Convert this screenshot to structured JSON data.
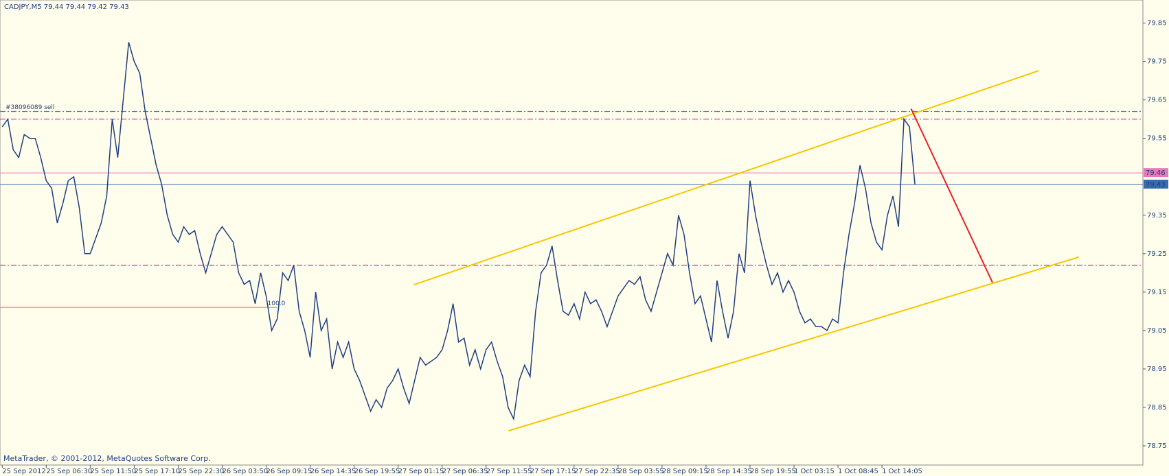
{
  "chart_data": {
    "type": "line",
    "title": "CADJPY,M5  79.44 79.44 79.42 79.43",
    "footer": "MetaTrader, © 2001-2012, MetaQuotes Software Corp.",
    "categories": [
      "25 Sep 2012",
      null,
      null,
      null,
      null,
      null,
      null,
      null,
      "25 Sep 06:30",
      null,
      null,
      null,
      null,
      null,
      null,
      null,
      "25 Sep 11:50",
      null,
      null,
      null,
      null,
      null,
      null,
      null,
      "25 Sep 17:10",
      null,
      null,
      null,
      null,
      null,
      null,
      null,
      "25 Sep 22:30",
      null,
      null,
      null,
      null,
      null,
      null,
      null,
      "26 Sep 03:50",
      null,
      null,
      null,
      null,
      null,
      null,
      null,
      "26 Sep 09:15",
      null,
      null,
      null,
      null,
      null,
      null,
      null,
      "26 Sep 14:35",
      null,
      null,
      null,
      null,
      null,
      null,
      null,
      "26 Sep 19:55",
      null,
      null,
      null,
      null,
      null,
      null,
      null,
      "27 Sep 01:15",
      null,
      null,
      null,
      null,
      null,
      null,
      null,
      "27 Sep 06:35",
      null,
      null,
      null,
      null,
      null,
      null,
      null,
      "27 Sep 11:55",
      null,
      null,
      null,
      null,
      null,
      null,
      null,
      "27 Sep 17:15",
      null,
      null,
      null,
      null,
      null,
      null,
      null,
      "27 Sep 22:35",
      null,
      null,
      null,
      null,
      null,
      null,
      null,
      "28 Sep 03:55",
      null,
      null,
      null,
      null,
      null,
      null,
      null,
      "28 Sep 09:15",
      null,
      null,
      null,
      null,
      null,
      null,
      null,
      "28 Sep 14:35",
      null,
      null,
      null,
      null,
      null,
      null,
      null,
      "28 Sep 19:55",
      null,
      null,
      null,
      null,
      null,
      null,
      null,
      "1 Oct 03:15",
      null,
      null,
      null,
      null,
      null,
      null,
      null,
      "1 Oct 08:45",
      null,
      null,
      null,
      null,
      null,
      null,
      null,
      "1 Oct 14:05",
      null,
      null,
      null,
      null,
      null,
      null
    ],
    "series": [
      {
        "color": "#1f3f7f",
        "values": [
          79.58,
          79.6,
          79.52,
          79.5,
          79.56,
          79.55,
          79.55,
          79.5,
          79.44,
          79.42,
          79.33,
          79.38,
          79.44,
          79.45,
          79.37,
          79.25,
          79.25,
          79.29,
          79.33,
          79.4,
          79.6,
          79.5,
          79.65,
          79.8,
          79.75,
          79.72,
          79.62,
          79.55,
          79.48,
          79.43,
          79.35,
          79.3,
          79.28,
          79.32,
          79.3,
          79.31,
          79.25,
          79.2,
          79.25,
          79.3,
          79.32,
          79.3,
          79.28,
          79.2,
          79.17,
          79.18,
          79.12,
          79.2,
          79.14,
          79.05,
          79.08,
          79.2,
          79.18,
          79.22,
          79.1,
          79.05,
          78.98,
          79.15,
          79.05,
          79.08,
          78.95,
          79.02,
          78.98,
          79.02,
          78.95,
          78.92,
          78.88,
          78.84,
          78.87,
          78.85,
          78.9,
          78.92,
          78.95,
          78.9,
          78.86,
          78.92,
          78.98,
          78.96,
          78.97,
          78.98,
          79.0,
          79.05,
          79.12,
          79.02,
          79.03,
          78.96,
          79.0,
          78.95,
          79.0,
          79.02,
          78.97,
          78.93,
          78.85,
          78.82,
          78.92,
          78.96,
          78.93,
          79.1,
          79.2,
          79.22,
          79.27,
          79.18,
          79.1,
          79.09,
          79.12,
          79.08,
          79.15,
          79.12,
          79.13,
          79.1,
          79.06,
          79.1,
          79.14,
          79.16,
          79.18,
          79.17,
          79.19,
          79.13,
          79.1,
          79.15,
          79.2,
          79.25,
          79.22,
          79.35,
          79.3,
          79.2,
          79.12,
          79.14,
          79.08,
          79.02,
          79.18,
          79.1,
          79.03,
          79.1,
          79.25,
          79.2,
          79.44,
          79.35,
          79.28,
          79.22,
          79.17,
          79.2,
          79.15,
          79.18,
          79.15,
          79.1,
          79.07,
          79.08,
          79.06,
          79.06,
          79.05,
          79.08,
          79.07,
          79.2,
          79.3,
          79.38,
          79.48,
          79.42,
          79.33,
          79.28,
          79.26,
          79.35,
          79.4,
          79.32,
          79.6,
          79.58,
          79.43
        ]
      }
    ],
    "ylim": [
      78.7,
      79.91
    ],
    "yticks": [
      78.75,
      78.85,
      78.95,
      79.05,
      79.15,
      79.25,
      79.35,
      79.55,
      79.65,
      79.75,
      79.85
    ],
    "levels": [
      {
        "value": 79.62,
        "color": "#4a7fa8",
        "style": "dashdot",
        "label": "#38096089 sell"
      },
      {
        "value": 79.6,
        "color": "#c0309a",
        "style": "dashdot"
      },
      {
        "value": 79.22,
        "color": "#c0309a",
        "style": "dashdot"
      },
      {
        "value": 79.11,
        "color": "#f0a030",
        "style": "solid",
        "label": "100.0",
        "x2": 50
      }
    ],
    "ask": {
      "value": 79.46,
      "color": "#e878b8"
    },
    "bid": {
      "value": 79.43,
      "color": "#3a6ab0"
    },
    "trendlines": [
      {
        "color": "#f5c800",
        "x1": 74.85,
        "y1": 79.169,
        "x2": 188.5,
        "y2": 79.726
      },
      {
        "color": "#f5c800",
        "x1": 92.07,
        "y1": 78.789,
        "x2": 195.8,
        "y2": 79.241
      },
      {
        "color": "#e8202a",
        "x1": 165.3,
        "y1": 79.627,
        "x2": 180.1,
        "y2": 79.175
      }
    ]
  }
}
